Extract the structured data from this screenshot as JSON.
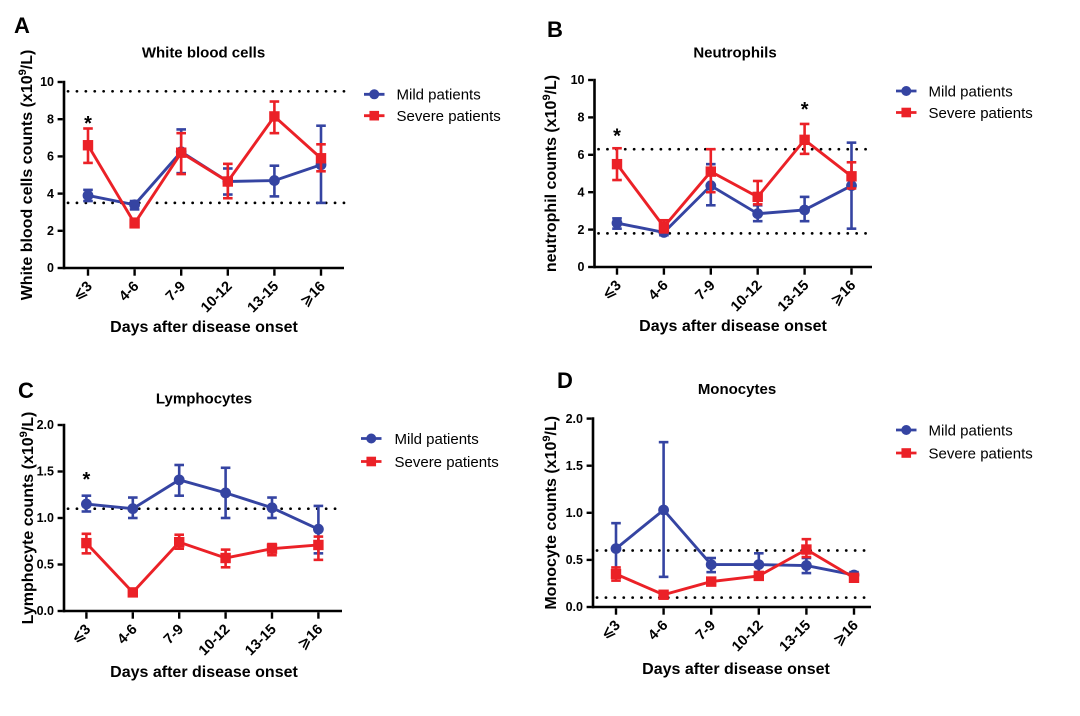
{
  "figure": {
    "background": "#ffffff",
    "text_color": "#000000",
    "series_colors": {
      "mild": "#3544A2",
      "severe": "#EB2127"
    },
    "x_axis_label": "Days after disease onset",
    "categories": [
      "⩽3",
      "4-6",
      "7-9",
      "10-12",
      "13-15",
      "⩾16"
    ],
    "legend_items": [
      {
        "label": "Mild patients",
        "marker": "circle",
        "color": "#3544A2"
      },
      {
        "label": "Severe patients",
        "marker": "square",
        "color": "#EB2127"
      }
    ]
  },
  "chart_data": [
    {
      "panel_label": "A",
      "type": "line",
      "title": "White blood cells",
      "xlabel": "Days after disease onset",
      "ylabel": "White blood cells counts (x10⁹/L)",
      "categories": [
        "⩽3",
        "4-6",
        "7-9",
        "10-12",
        "13-15",
        "⩾16"
      ],
      "ylim": [
        0,
        10
      ],
      "ytick_labels": [
        "0",
        "2",
        "4",
        "6",
        "8",
        "10"
      ],
      "grid": false,
      "legend_position": "right",
      "reference_lines": [
        9.5,
        3.5
      ],
      "series": [
        {
          "name": "Mild patients",
          "marker": "circle",
          "color": "#3544A2",
          "values": [
            3.9,
            3.4,
            6.25,
            4.65,
            4.7,
            5.55
          ],
          "err_low": [
            3.6,
            3.15,
            5.1,
            3.95,
            3.85,
            3.5
          ],
          "err_high": [
            4.2,
            3.6,
            7.45,
            5.35,
            5.5,
            7.65
          ]
        },
        {
          "name": "Severe patients",
          "marker": "square",
          "color": "#EB2127",
          "values": [
            6.6,
            2.4,
            6.2,
            4.65,
            8.15,
            5.9
          ],
          "err_low": [
            5.65,
            2.2,
            5.05,
            3.75,
            7.25,
            5.2
          ],
          "err_high": [
            7.5,
            2.65,
            7.25,
            5.6,
            8.95,
            6.65
          ]
        }
      ],
      "significance": [
        {
          "category": "⩽3",
          "category_index": 0,
          "symbol": "*",
          "y": 7.95
        }
      ]
    },
    {
      "panel_label": "B",
      "type": "line",
      "title": "Neutrophils",
      "xlabel": "Days after disease onset",
      "ylabel": "neutrophil counts (x10⁹/L)",
      "categories": [
        "⩽3",
        "4-6",
        "7-9",
        "10-12",
        "13-15",
        "⩾16"
      ],
      "ylim": [
        0,
        10
      ],
      "ytick_labels": [
        "0",
        "2",
        "4",
        "6",
        "8",
        "10"
      ],
      "grid": false,
      "legend_position": "right",
      "reference_lines": [
        6.3,
        1.8
      ],
      "series": [
        {
          "name": "Mild patients",
          "marker": "circle",
          "color": "#3544A2",
          "values": [
            2.35,
            1.85,
            4.35,
            2.85,
            3.05,
            4.35
          ],
          "err_low": [
            2.05,
            1.7,
            3.3,
            2.45,
            2.45,
            2.05
          ],
          "err_high": [
            2.6,
            2.0,
            5.5,
            3.3,
            3.75,
            6.65
          ]
        },
        {
          "name": "Severe patients",
          "marker": "square",
          "color": "#EB2127",
          "values": [
            5.5,
            2.15,
            5.1,
            3.75,
            6.8,
            4.85
          ],
          "err_low": [
            4.65,
            1.85,
            4.0,
            3.35,
            6.05,
            4.2
          ],
          "err_high": [
            6.35,
            2.5,
            6.3,
            4.6,
            7.65,
            5.6
          ]
        }
      ],
      "significance": [
        {
          "category": "⩽3",
          "category_index": 0,
          "symbol": "*",
          "y": 7.2
        },
        {
          "category": "13-15",
          "category_index": 4,
          "symbol": "*",
          "y": 8.6
        }
      ]
    },
    {
      "panel_label": "C",
      "type": "line",
      "title": "Lymphocytes",
      "xlabel": "Days after disease onset",
      "ylabel": "Lymphocyte counts (x10⁹/L)",
      "categories": [
        "⩽3",
        "4-6",
        "7-9",
        "10-12",
        "13-15",
        "⩾16"
      ],
      "ylim": [
        0,
        2
      ],
      "ytick_labels": [
        "0.0",
        "0.5",
        "1.0",
        "1.5",
        "2.0"
      ],
      "grid": false,
      "legend_position": "right",
      "reference_lines": [
        1.1
      ],
      "series": [
        {
          "name": "Mild patients",
          "marker": "circle",
          "color": "#3544A2",
          "values": [
            1.15,
            1.1,
            1.41,
            1.27,
            1.11,
            0.88
          ],
          "err_low": [
            1.07,
            1.0,
            1.24,
            1.0,
            1.0,
            0.62
          ],
          "err_high": [
            1.24,
            1.22,
            1.57,
            1.54,
            1.22,
            1.13
          ]
        },
        {
          "name": "Severe patients",
          "marker": "square",
          "color": "#EB2127",
          "values": [
            0.73,
            0.2,
            0.74,
            0.57,
            0.67,
            0.71
          ],
          "err_low": [
            0.62,
            0.18,
            0.67,
            0.47,
            0.6,
            0.55
          ],
          "err_high": [
            0.83,
            0.22,
            0.82,
            0.66,
            0.72,
            0.8
          ]
        }
      ],
      "significance": [
        {
          "category": "⩽3",
          "category_index": 0,
          "symbol": "*",
          "y": 1.45
        }
      ]
    },
    {
      "panel_label": "D",
      "type": "line",
      "title": "Monocytes",
      "xlabel": "Days after disease onset",
      "ylabel": "Monocyte counts (x10⁹/L)",
      "categories": [
        "⩽3",
        "4-6",
        "7-9",
        "10-12",
        "13-15",
        "⩾16"
      ],
      "ylim": [
        0,
        2
      ],
      "ytick_labels": [
        "0.0",
        "0.5",
        "1.0",
        "1.5",
        "2.0"
      ],
      "grid": false,
      "legend_position": "right",
      "reference_lines": [
        0.6,
        0.1
      ],
      "series": [
        {
          "name": "Mild patients",
          "marker": "circle",
          "color": "#3544A2",
          "values": [
            0.62,
            1.03,
            0.45,
            0.45,
            0.44,
            0.34
          ],
          "err_low": [
            0.35,
            0.32,
            0.37,
            0.33,
            0.36,
            0.31
          ],
          "err_high": [
            0.89,
            1.75,
            0.52,
            0.57,
            0.52,
            0.37
          ]
        },
        {
          "name": "Severe patients",
          "marker": "square",
          "color": "#EB2127",
          "values": [
            0.35,
            0.13,
            0.27,
            0.33,
            0.61,
            0.31
          ],
          "err_low": [
            0.28,
            0.1,
            0.23,
            0.3,
            0.53,
            0.28
          ],
          "err_high": [
            0.42,
            0.16,
            0.31,
            0.37,
            0.72,
            0.34
          ]
        }
      ],
      "significance": []
    }
  ]
}
